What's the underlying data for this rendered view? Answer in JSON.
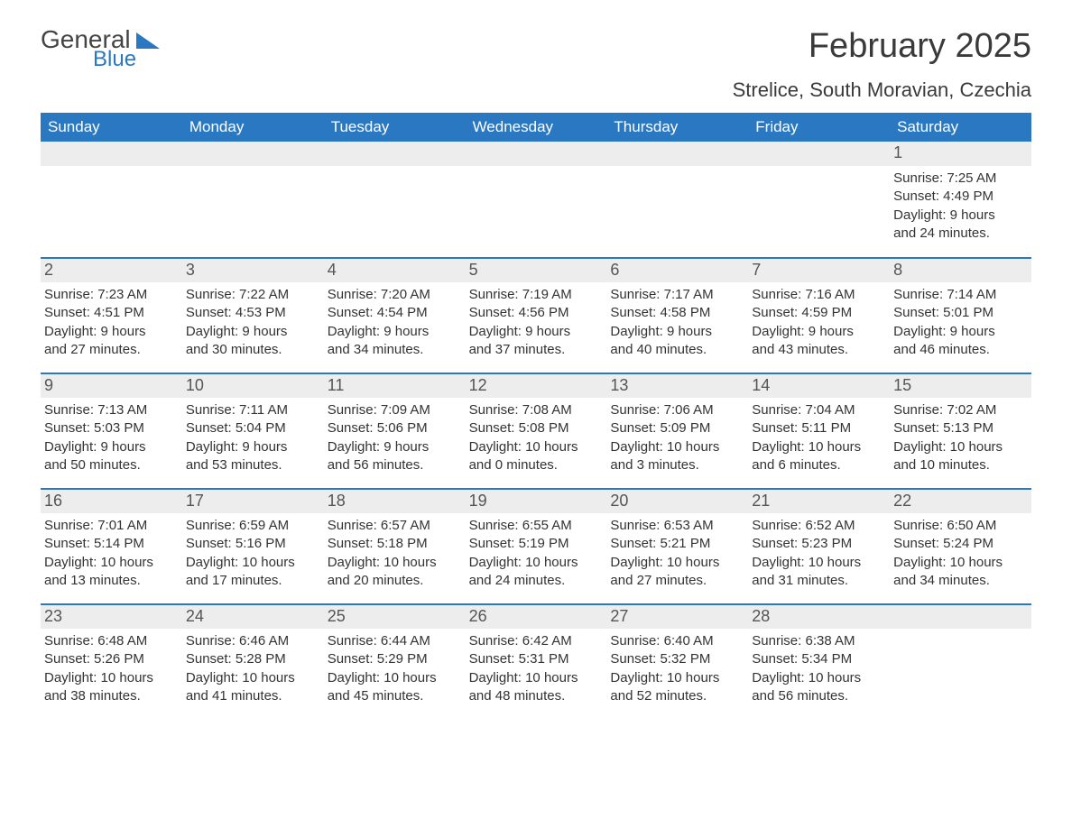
{
  "logo": {
    "word1": "General",
    "word2": "Blue"
  },
  "title": "February 2025",
  "location": "Strelice, South Moravian, Czechia",
  "colors": {
    "header_bg": "#2b78c2",
    "header_text": "#ffffff",
    "band_bg": "#ededed",
    "rule": "#2b78c2",
    "body_text": "#333333",
    "title_text": "#3a3a3a"
  },
  "days_of_week": [
    "Sunday",
    "Monday",
    "Tuesday",
    "Wednesday",
    "Thursday",
    "Friday",
    "Saturday"
  ],
  "labels": {
    "sunrise": "Sunrise:",
    "sunset": "Sunset:",
    "daylight": "Daylight:"
  },
  "weeks": [
    [
      null,
      null,
      null,
      null,
      null,
      null,
      {
        "n": "1",
        "sunrise": "7:25 AM",
        "sunset": "4:49 PM",
        "dl1": "9 hours",
        "dl2": "and 24 minutes."
      }
    ],
    [
      {
        "n": "2",
        "sunrise": "7:23 AM",
        "sunset": "4:51 PM",
        "dl1": "9 hours",
        "dl2": "and 27 minutes."
      },
      {
        "n": "3",
        "sunrise": "7:22 AM",
        "sunset": "4:53 PM",
        "dl1": "9 hours",
        "dl2": "and 30 minutes."
      },
      {
        "n": "4",
        "sunrise": "7:20 AM",
        "sunset": "4:54 PM",
        "dl1": "9 hours",
        "dl2": "and 34 minutes."
      },
      {
        "n": "5",
        "sunrise": "7:19 AM",
        "sunset": "4:56 PM",
        "dl1": "9 hours",
        "dl2": "and 37 minutes."
      },
      {
        "n": "6",
        "sunrise": "7:17 AM",
        "sunset": "4:58 PM",
        "dl1": "9 hours",
        "dl2": "and 40 minutes."
      },
      {
        "n": "7",
        "sunrise": "7:16 AM",
        "sunset": "4:59 PM",
        "dl1": "9 hours",
        "dl2": "and 43 minutes."
      },
      {
        "n": "8",
        "sunrise": "7:14 AM",
        "sunset": "5:01 PM",
        "dl1": "9 hours",
        "dl2": "and 46 minutes."
      }
    ],
    [
      {
        "n": "9",
        "sunrise": "7:13 AM",
        "sunset": "5:03 PM",
        "dl1": "9 hours",
        "dl2": "and 50 minutes."
      },
      {
        "n": "10",
        "sunrise": "7:11 AM",
        "sunset": "5:04 PM",
        "dl1": "9 hours",
        "dl2": "and 53 minutes."
      },
      {
        "n": "11",
        "sunrise": "7:09 AM",
        "sunset": "5:06 PM",
        "dl1": "9 hours",
        "dl2": "and 56 minutes."
      },
      {
        "n": "12",
        "sunrise": "7:08 AM",
        "sunset": "5:08 PM",
        "dl1": "10 hours",
        "dl2": "and 0 minutes."
      },
      {
        "n": "13",
        "sunrise": "7:06 AM",
        "sunset": "5:09 PM",
        "dl1": "10 hours",
        "dl2": "and 3 minutes."
      },
      {
        "n": "14",
        "sunrise": "7:04 AM",
        "sunset": "5:11 PM",
        "dl1": "10 hours",
        "dl2": "and 6 minutes."
      },
      {
        "n": "15",
        "sunrise": "7:02 AM",
        "sunset": "5:13 PM",
        "dl1": "10 hours",
        "dl2": "and 10 minutes."
      }
    ],
    [
      {
        "n": "16",
        "sunrise": "7:01 AM",
        "sunset": "5:14 PM",
        "dl1": "10 hours",
        "dl2": "and 13 minutes."
      },
      {
        "n": "17",
        "sunrise": "6:59 AM",
        "sunset": "5:16 PM",
        "dl1": "10 hours",
        "dl2": "and 17 minutes."
      },
      {
        "n": "18",
        "sunrise": "6:57 AM",
        "sunset": "5:18 PM",
        "dl1": "10 hours",
        "dl2": "and 20 minutes."
      },
      {
        "n": "19",
        "sunrise": "6:55 AM",
        "sunset": "5:19 PM",
        "dl1": "10 hours",
        "dl2": "and 24 minutes."
      },
      {
        "n": "20",
        "sunrise": "6:53 AM",
        "sunset": "5:21 PM",
        "dl1": "10 hours",
        "dl2": "and 27 minutes."
      },
      {
        "n": "21",
        "sunrise": "6:52 AM",
        "sunset": "5:23 PM",
        "dl1": "10 hours",
        "dl2": "and 31 minutes."
      },
      {
        "n": "22",
        "sunrise": "6:50 AM",
        "sunset": "5:24 PM",
        "dl1": "10 hours",
        "dl2": "and 34 minutes."
      }
    ],
    [
      {
        "n": "23",
        "sunrise": "6:48 AM",
        "sunset": "5:26 PM",
        "dl1": "10 hours",
        "dl2": "and 38 minutes."
      },
      {
        "n": "24",
        "sunrise": "6:46 AM",
        "sunset": "5:28 PM",
        "dl1": "10 hours",
        "dl2": "and 41 minutes."
      },
      {
        "n": "25",
        "sunrise": "6:44 AM",
        "sunset": "5:29 PM",
        "dl1": "10 hours",
        "dl2": "and 45 minutes."
      },
      {
        "n": "26",
        "sunrise": "6:42 AM",
        "sunset": "5:31 PM",
        "dl1": "10 hours",
        "dl2": "and 48 minutes."
      },
      {
        "n": "27",
        "sunrise": "6:40 AM",
        "sunset": "5:32 PM",
        "dl1": "10 hours",
        "dl2": "and 52 minutes."
      },
      {
        "n": "28",
        "sunrise": "6:38 AM",
        "sunset": "5:34 PM",
        "dl1": "10 hours",
        "dl2": "and 56 minutes."
      },
      null
    ]
  ]
}
